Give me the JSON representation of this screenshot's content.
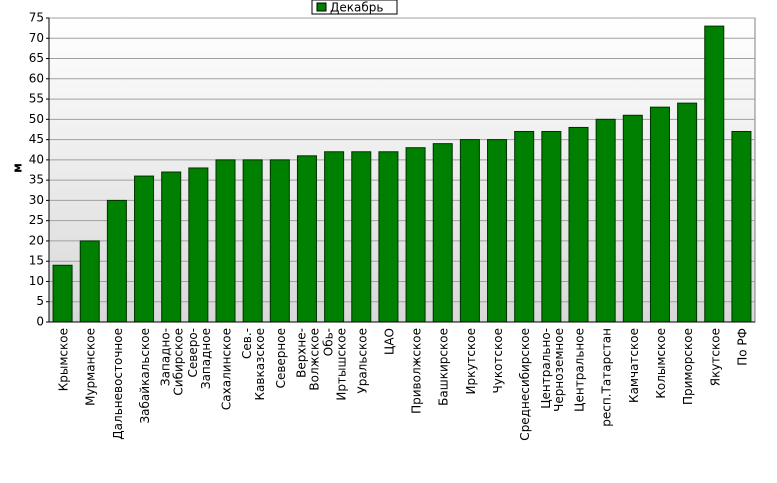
{
  "chart_data": {
    "type": "bar",
    "y_label": "м",
    "legend": "top",
    "series": [
      {
        "name": "Декабрь",
        "color": "#008000",
        "values": [
          14,
          20,
          30,
          36,
          37,
          38,
          40,
          40,
          40,
          41,
          42,
          42,
          42,
          43,
          44,
          45,
          45,
          47,
          47,
          48,
          50,
          51,
          53,
          54,
          73,
          47
        ]
      }
    ],
    "categories": [
      "Крымское",
      "Мурманское",
      "Дальневосточное",
      "Забайкальское",
      "Западно-Сибирское",
      "Северо-Западное",
      "Сахалинское",
      "Сев.-Кавказское",
      "Северное",
      "Верхне-Волжское",
      "Обь-Иртышское",
      "Уральское",
      "ЦАО",
      "Приволжское",
      "Башкирское",
      "Иркутское",
      "Чукотское",
      "Среднесибирское",
      "Центрально-Черноземное",
      "Центральное",
      "респ.Татарстан",
      "Камчатское",
      "Колымское",
      "Приморское",
      "Якутское",
      "По РФ"
    ],
    "ylim": [
      0,
      75
    ],
    "yticks": [
      0,
      5,
      10,
      15,
      20,
      25,
      30,
      35,
      40,
      45,
      50,
      55,
      60,
      65,
      70,
      75
    ],
    "grid": true
  }
}
